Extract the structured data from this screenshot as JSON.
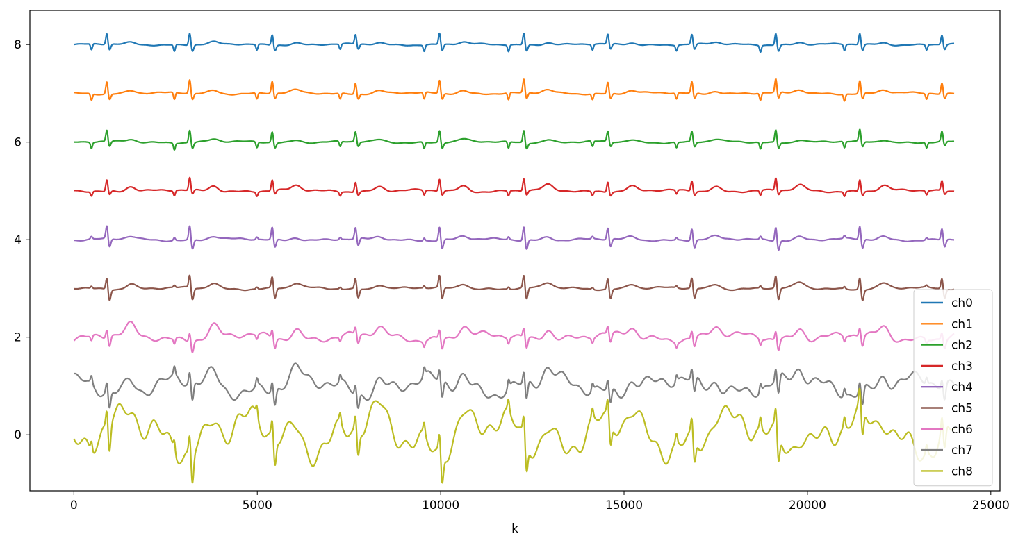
{
  "chart_data": {
    "type": "line",
    "title": "",
    "xlabel": "k",
    "ylabel": "",
    "xlim": [
      -1200,
      25250
    ],
    "ylim": [
      -1.15,
      8.7
    ],
    "x_ticks": [
      0,
      5000,
      10000,
      15000,
      20000,
      25000
    ],
    "y_ticks": [
      0,
      2,
      4,
      6,
      8
    ],
    "legend_position": "lower-right",
    "grid": false,
    "series": [
      {
        "name": "ch0",
        "offset": 8,
        "color": "#1f77b4"
      },
      {
        "name": "ch1",
        "offset": 7,
        "color": "#ff7f0e"
      },
      {
        "name": "ch2",
        "offset": 6,
        "color": "#2ca02c"
      },
      {
        "name": "ch3",
        "offset": 5,
        "color": "#d62728"
      },
      {
        "name": "ch4",
        "offset": 4,
        "color": "#9467bd"
      },
      {
        "name": "ch5",
        "offset": 3,
        "color": "#8c564b"
      },
      {
        "name": "ch6",
        "offset": 2,
        "color": "#e377c2"
      },
      {
        "name": "ch7",
        "offset": 1,
        "color": "#7f7f7f"
      },
      {
        "name": "ch8",
        "offset": 0,
        "color": "#bcbd22"
      }
    ],
    "beats_x": [
      900,
      3160,
      5410,
      7680,
      9970,
      12270,
      14560,
      16850,
      19140,
      21430,
      23670
    ],
    "x_range": [
      0,
      24000
    ]
  }
}
